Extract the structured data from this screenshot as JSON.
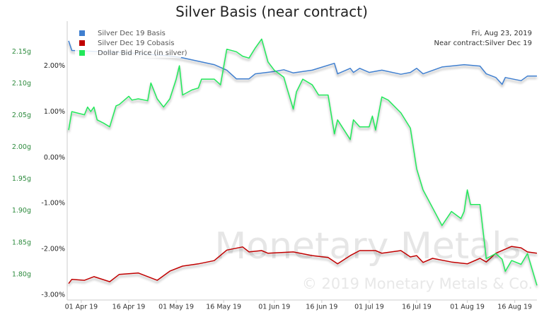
{
  "chart_data": {
    "type": "line",
    "title": "Silver Basis (near contract)",
    "annotations": [
      "Fri, Aug 23, 2019",
      "Near contract:Silver Dec 19"
    ],
    "watermark": [
      "Monetary Metals",
      "© 2019 Monetary Metals & Co."
    ],
    "xlim": [
      "2019-03-28",
      "2019-08-23"
    ],
    "xticks": [
      {
        "value": "2019-04-01",
        "label": "01 Apr 19"
      },
      {
        "value": "2019-04-16",
        "label": "16 Apr 19"
      },
      {
        "value": "2019-05-01",
        "label": "01 May 19"
      },
      {
        "value": "2019-05-16",
        "label": "16 May 19"
      },
      {
        "value": "2019-06-01",
        "label": "01 Jun 19"
      },
      {
        "value": "2019-06-16",
        "label": "16 Jun 19"
      },
      {
        "value": "2019-07-01",
        "label": "01 Jul 19"
      },
      {
        "value": "2019-07-16",
        "label": "16 Jul 19"
      },
      {
        "value": "2019-08-01",
        "label": "01 Aug 19"
      },
      {
        "value": "2019-08-16",
        "label": "16 Aug 19"
      }
    ],
    "ylim": [
      -3.11,
      2.98
    ],
    "yticks": [
      {
        "value": 2,
        "label": "2.00%"
      },
      {
        "value": 1,
        "label": "1.00%"
      },
      {
        "value": 0,
        "label": "0.00%"
      },
      {
        "value": -1,
        "label": "-1.00%"
      },
      {
        "value": -2,
        "label": "-2.00%"
      },
      {
        "value": -3,
        "label": "-3.00%"
      }
    ],
    "y2lim": [
      1.76,
      2.198
    ],
    "y2ticks": [
      {
        "value": 2.15,
        "label": "2.15g"
      },
      {
        "value": 2.1,
        "label": "2.10g"
      },
      {
        "value": 2.05,
        "label": "2.05g"
      },
      {
        "value": 2.0,
        "label": "2.00g"
      },
      {
        "value": 1.95,
        "label": "1.95g"
      },
      {
        "value": 1.9,
        "label": "1.90g"
      },
      {
        "value": 1.85,
        "label": "1.85g"
      },
      {
        "value": 1.8,
        "label": "1.80g"
      }
    ],
    "grid": false,
    "series": [
      {
        "name": "Silver Dec 19 Basis",
        "color": "#3f7fcf",
        "x": [
          "2019-03-28",
          "2019-03-29",
          "2019-04-16",
          "2019-04-29",
          "2019-05-03",
          "2019-05-13",
          "2019-05-17",
          "2019-05-20",
          "2019-05-24",
          "2019-05-26",
          "2019-06-01",
          "2019-06-04",
          "2019-06-07",
          "2019-06-13",
          "2019-06-20",
          "2019-06-21",
          "2019-06-25",
          "2019-06-26",
          "2019-06-28",
          "2019-07-01",
          "2019-07-05",
          "2019-07-11",
          "2019-07-14",
          "2019-07-16",
          "2019-07-18",
          "2019-07-24",
          "2019-07-31",
          "2019-08-05",
          "2019-08-07",
          "2019-08-10",
          "2019-08-12",
          "2019-08-13",
          "2019-08-18",
          "2019-08-20",
          "2019-08-23"
        ],
        "values": [
          2.55,
          2.34,
          2.29,
          2.22,
          2.18,
          2.03,
          1.91,
          1.72,
          1.72,
          1.83,
          1.88,
          1.92,
          1.85,
          1.91,
          2.06,
          1.83,
          1.95,
          1.86,
          1.95,
          1.86,
          1.91,
          1.82,
          1.86,
          1.95,
          1.83,
          1.98,
          2.03,
          2.0,
          1.83,
          1.75,
          1.6,
          1.75,
          1.68,
          1.78,
          1.78
        ]
      },
      {
        "name": "Silver Dec 19 Cobasis",
        "color": "#c00000",
        "x": [
          "2019-03-28",
          "2019-03-29",
          "2019-04-02",
          "2019-04-05",
          "2019-04-10",
          "2019-04-13",
          "2019-04-19",
          "2019-04-25",
          "2019-04-29",
          "2019-05-03",
          "2019-05-08",
          "2019-05-13",
          "2019-05-17",
          "2019-05-22",
          "2019-05-24",
          "2019-05-28",
          "2019-05-30",
          "2019-06-07",
          "2019-06-13",
          "2019-06-18",
          "2019-06-21",
          "2019-06-25",
          "2019-06-28",
          "2019-07-03",
          "2019-07-05",
          "2019-07-11",
          "2019-07-14",
          "2019-07-16",
          "2019-07-18",
          "2019-07-21",
          "2019-07-27",
          "2019-08-01",
          "2019-08-05",
          "2019-08-07",
          "2019-08-10",
          "2019-08-15",
          "2019-08-18",
          "2019-08-20",
          "2019-08-23"
        ],
        "values": [
          -2.75,
          -2.66,
          -2.68,
          -2.6,
          -2.71,
          -2.55,
          -2.52,
          -2.68,
          -2.48,
          -2.37,
          -2.32,
          -2.25,
          -2.02,
          -1.95,
          -2.06,
          -2.03,
          -2.09,
          -2.06,
          -2.14,
          -2.18,
          -2.32,
          -2.14,
          -2.03,
          -2.03,
          -2.09,
          -2.03,
          -2.17,
          -2.14,
          -2.29,
          -2.2,
          -2.28,
          -2.32,
          -2.2,
          -2.28,
          -2.09,
          -1.94,
          -1.97,
          -2.06,
          -2.09
        ]
      },
      {
        "name": "Dollar Bid Price (in silver)",
        "color": "#22e85a",
        "axis": "y2",
        "x": [
          "2019-03-28",
          "2019-03-29",
          "2019-04-02",
          "2019-04-03",
          "2019-04-04",
          "2019-04-05",
          "2019-04-06",
          "2019-04-08",
          "2019-04-10",
          "2019-04-12",
          "2019-04-13",
          "2019-04-16",
          "2019-04-17",
          "2019-04-19",
          "2019-04-22",
          "2019-04-23",
          "2019-04-25",
          "2019-04-27",
          "2019-04-29",
          "2019-05-01",
          "2019-05-02",
          "2019-05-03",
          "2019-05-06",
          "2019-05-08",
          "2019-05-09",
          "2019-05-13",
          "2019-05-15",
          "2019-05-17",
          "2019-05-20",
          "2019-05-22",
          "2019-05-24",
          "2019-05-26",
          "2019-05-28",
          "2019-05-30",
          "2019-06-01",
          "2019-06-04",
          "2019-06-05",
          "2019-06-07",
          "2019-06-08",
          "2019-06-10",
          "2019-06-13",
          "2019-06-15",
          "2019-06-18",
          "2019-06-20",
          "2019-06-21",
          "2019-06-25",
          "2019-06-26",
          "2019-06-28",
          "2019-07-01",
          "2019-07-02",
          "2019-07-03",
          "2019-07-05",
          "2019-07-07",
          "2019-07-11",
          "2019-07-14",
          "2019-07-16",
          "2019-07-18",
          "2019-07-21",
          "2019-07-24",
          "2019-07-27",
          "2019-07-30",
          "2019-07-31",
          "2019-08-01",
          "2019-08-02",
          "2019-08-05",
          "2019-08-07",
          "2019-08-10",
          "2019-08-12",
          "2019-08-13",
          "2019-08-15",
          "2019-08-18",
          "2019-08-20",
          "2019-08-23"
        ],
        "values": [
          2.027,
          2.056,
          2.051,
          2.063,
          2.056,
          2.063,
          2.043,
          2.038,
          2.032,
          2.065,
          2.067,
          2.08,
          2.074,
          2.076,
          2.073,
          2.101,
          2.076,
          2.063,
          2.076,
          2.107,
          2.128,
          2.082,
          2.09,
          2.093,
          2.107,
          2.107,
          2.098,
          2.154,
          2.15,
          2.143,
          2.14,
          2.156,
          2.17,
          2.134,
          2.121,
          2.11,
          2.093,
          2.06,
          2.087,
          2.107,
          2.098,
          2.082,
          2.082,
          2.021,
          2.043,
          2.012,
          2.043,
          2.032,
          2.032,
          2.049,
          2.027,
          2.079,
          2.074,
          2.054,
          2.03,
          1.966,
          1.933,
          1.905,
          1.877,
          1.899,
          1.888,
          1.899,
          1.933,
          1.91,
          1.91,
          1.825,
          1.833,
          1.824,
          1.805,
          1.822,
          1.816,
          1.833,
          1.783
        ]
      }
    ]
  }
}
